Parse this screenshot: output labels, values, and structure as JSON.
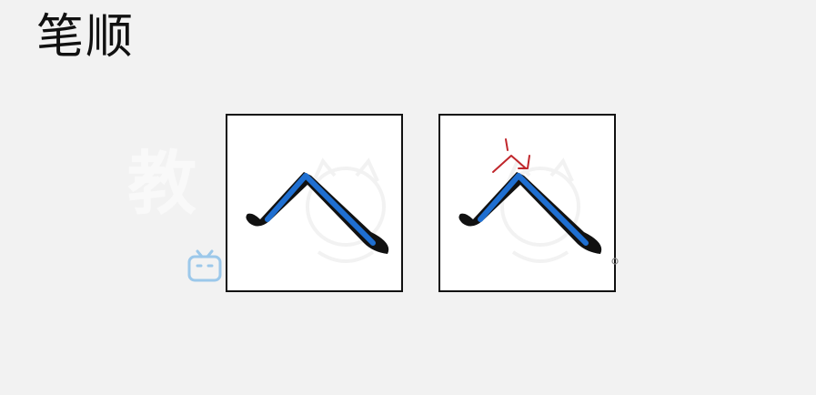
{
  "slide": {
    "title": "笔顺",
    "watermark_text": "教",
    "icons": {
      "tv": "bilibili-tv-icon",
      "mascot": "mascot-watermark-icon",
      "cursor": "cursor-icon"
    }
  },
  "cards": [
    {
      "name": "stroke-card-1",
      "annotation": false
    },
    {
      "name": "stroke-card-2",
      "annotation": true
    }
  ],
  "colors": {
    "stroke_black": "#111111",
    "stroke_blue": "#1f6fd1",
    "annotation_red": "#c0262b"
  }
}
